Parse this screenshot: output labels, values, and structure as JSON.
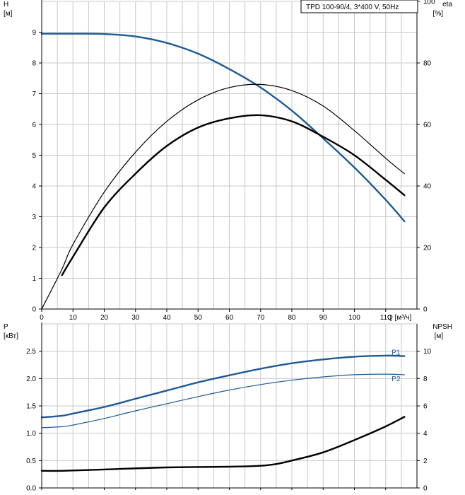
{
  "chart_data": [
    {
      "type": "line",
      "title": "TPD 100-90/4, 3*400 V, 50Hz",
      "xlabel": "Q [м³/ч]",
      "xlim": [
        0,
        120
      ],
      "x_ticks": [
        0,
        10,
        20,
        30,
        40,
        50,
        60,
        70,
        80,
        90,
        100,
        110
      ],
      "left_axis": {
        "label_top": "H",
        "label_unit": "[м]",
        "ylim": [
          0,
          10
        ],
        "ticks": [
          0,
          1,
          2,
          3,
          4,
          5,
          6,
          7,
          8,
          9
        ]
      },
      "right_axis": {
        "label_top": "eta",
        "label_unit": "[%]",
        "ylim": [
          0,
          100
        ],
        "ticks": [
          0,
          20,
          40,
          60,
          80,
          100
        ]
      },
      "grid": true,
      "series": [
        {
          "axis": "left",
          "color": "#1e5a96",
          "width": 2.4,
          "x": [
            0,
            10,
            20,
            30,
            40,
            50,
            60,
            70,
            80,
            90,
            100,
            110,
            116
          ],
          "y": [
            8.95,
            8.95,
            8.94,
            8.86,
            8.65,
            8.3,
            7.8,
            7.2,
            6.45,
            5.55,
            4.6,
            3.55,
            2.85
          ]
        },
        {
          "axis": "right",
          "color": "#000000",
          "width": 1.2,
          "x": [
            0,
            6.5,
            10,
            20,
            30,
            40,
            50,
            60,
            70,
            80,
            90,
            100,
            110,
            116
          ],
          "y": [
            0,
            13,
            21,
            38,
            51,
            61,
            68,
            72,
            73,
            71,
            66,
            58,
            49,
            44
          ]
        },
        {
          "axis": "right",
          "color": "#000000",
          "width": 2.4,
          "x": [
            6.5,
            10,
            20,
            30,
            40,
            50,
            60,
            70,
            80,
            90,
            100,
            110,
            116
          ],
          "y": [
            11,
            17,
            33,
            44,
            53,
            59,
            62,
            63,
            61,
            56,
            50,
            42,
            37
          ]
        }
      ]
    },
    {
      "type": "line",
      "xlim": [
        0,
        120
      ],
      "left_axis": {
        "label_top": "P",
        "label_unit": "[кВт]",
        "ylim": [
          0,
          3
        ],
        "ticks": [
          0.0,
          0.5,
          1.0,
          1.5,
          2.0,
          2.5
        ],
        "tick_labels": [
          "0.0",
          "0.5",
          "1.0",
          "1.5",
          "2.0",
          "2.5"
        ]
      },
      "right_axis": {
        "label_top": "NPSH",
        "label_unit": "[м]",
        "ylim": [
          0,
          12
        ],
        "ticks": [
          0,
          2,
          4,
          6,
          8,
          10
        ]
      },
      "grid": true,
      "series": [
        {
          "name": "P1",
          "axis": "left",
          "color": "#1e5a96",
          "width": 2.4,
          "x": [
            0,
            6.5,
            10,
            20,
            30,
            40,
            50,
            60,
            70,
            80,
            90,
            100,
            110,
            116
          ],
          "y": [
            1.29,
            1.32,
            1.36,
            1.48,
            1.63,
            1.78,
            1.93,
            2.06,
            2.18,
            2.28,
            2.35,
            2.4,
            2.42,
            2.41
          ]
        },
        {
          "name": "P2",
          "axis": "left",
          "color": "#1e5a96",
          "width": 1.2,
          "x": [
            0,
            6.5,
            10,
            20,
            30,
            40,
            50,
            60,
            70,
            80,
            90,
            100,
            110,
            116
          ],
          "y": [
            1.1,
            1.12,
            1.15,
            1.27,
            1.41,
            1.54,
            1.67,
            1.79,
            1.89,
            1.97,
            2.03,
            2.07,
            2.08,
            2.07
          ]
        },
        {
          "axis": "right",
          "color": "#000000",
          "width": 2.4,
          "x": [
            0,
            6.5,
            20,
            40,
            60,
            70,
            75,
            80,
            90,
            100,
            110,
            116
          ],
          "y": [
            1.25,
            1.25,
            1.35,
            1.5,
            1.55,
            1.62,
            1.75,
            2.0,
            2.6,
            3.5,
            4.5,
            5.2
          ]
        }
      ]
    }
  ]
}
